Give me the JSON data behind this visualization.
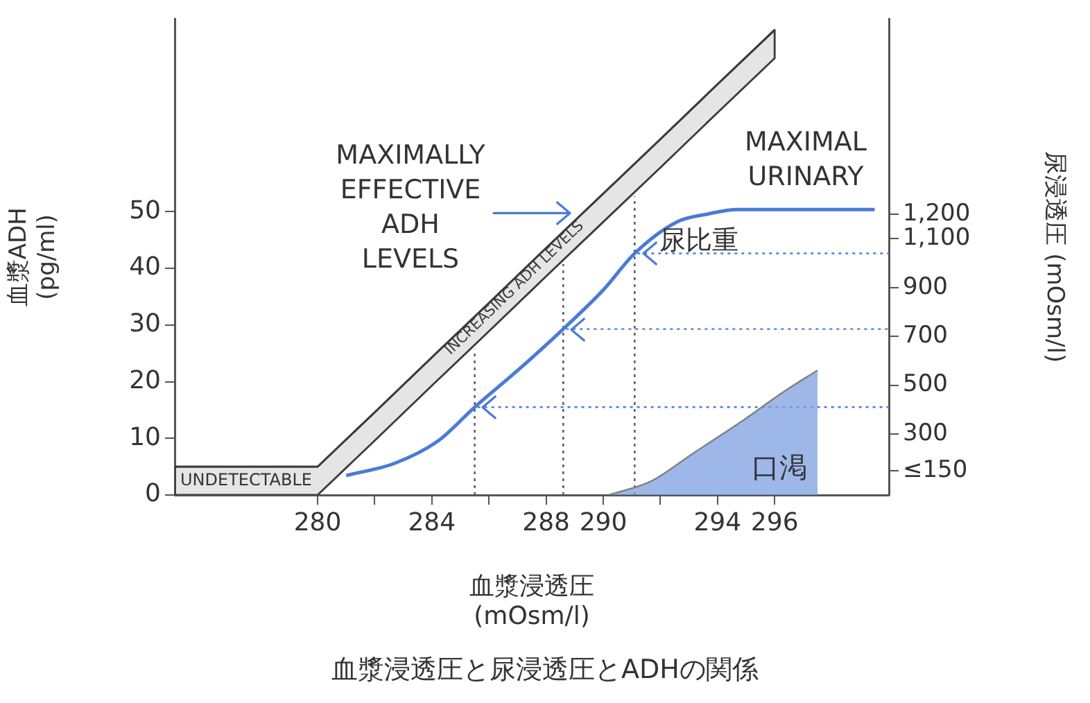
{
  "chart_data": {
    "type": "line",
    "title": "血漿浸透圧と尿浸透圧とADHの関係",
    "xlabel": "血漿浸透圧 (mOsm/l)",
    "ylabel": "血漿ADH (pg/ml)",
    "y2label": "尿浸透圧 (mOsm/l)",
    "xlim": [
      275,
      300
    ],
    "xticks": [
      280,
      {
        "value": 282,
        "label": null
      },
      284,
      {
        "value": 286,
        "label": null
      },
      288,
      290,
      {
        "value": 292,
        "label": null
      },
      294,
      296
    ],
    "ylim": [
      0,
      84
    ],
    "yticks": [
      0,
      10,
      20,
      30,
      40,
      50
    ],
    "y2lim": [
      50,
      2000
    ],
    "y2ticks": [
      {
        "value": 150,
        "label": "≤150"
      },
      300,
      500,
      700,
      900,
      {
        "value": 1100,
        "label": "1,100"
      },
      {
        "value": 1200,
        "label": "1,200"
      }
    ],
    "series": [
      {
        "name": "INCREASING ADH LEVELS",
        "color": "#3a3a3a",
        "x": [
          275,
          280,
          282,
          284,
          286,
          288,
          290,
          292,
          294,
          296
        ],
        "values": [
          5,
          5,
          14.6,
          24.3,
          33.9,
          43.6,
          53.2,
          62.8,
          72.5,
          82.1
        ],
        "lower": [
          0,
          0,
          9.6,
          19.3,
          28.9,
          38.6,
          48.2,
          57.8,
          67.5,
          77.1
        ],
        "upper": [
          5,
          5,
          14.6,
          24.3,
          33.9,
          43.6,
          53.2,
          62.8,
          72.5,
          82.1
        ]
      },
      {
        "name": "尿比重",
        "color": "#4a7bd6",
        "axis": "y2",
        "x": [
          281,
          282.7,
          284.2,
          285.5,
          287,
          288.6,
          290,
          291.1,
          292.6,
          293.6,
          294.7,
          299.5
        ],
        "values": [
          130,
          180,
          270,
          410,
          560,
          730,
          890,
          1040,
          1170,
          1200,
          1220,
          1220
        ]
      },
      {
        "name": "口渇",
        "type": "area",
        "color": "#7a9de0",
        "x": [
          290.2,
          291.7,
          293.1,
          294.7,
          296.4,
          297.5
        ],
        "values": [
          0,
          2.5,
          7.2,
          12.5,
          18.5,
          22
        ]
      }
    ],
    "ref_lines": [
      {
        "axis": "x",
        "value": 285.5,
        "color": "#555555",
        "line_style": "dotted"
      },
      {
        "axis": "x",
        "value": 288.6,
        "color": "#555555",
        "line_style": "dotted"
      },
      {
        "axis": "x",
        "value": 291.1,
        "color": "#555555",
        "line_style": "dotted"
      },
      {
        "axis": "y2",
        "value": 410,
        "color": "#4a7bd6",
        "line_style": "dotted"
      },
      {
        "axis": "y2",
        "value": 730,
        "color": "#4a7bd6",
        "line_style": "dotted"
      },
      {
        "axis": "y2",
        "value": 1040,
        "color": "#4a7bd6",
        "line_style": "dotted"
      }
    ],
    "annotations": [
      "UNDETECTABLE",
      "MAXIMAL URINARY",
      "MAXIMALLY EFFECTIVE ADH LEVELS"
    ]
  }
}
